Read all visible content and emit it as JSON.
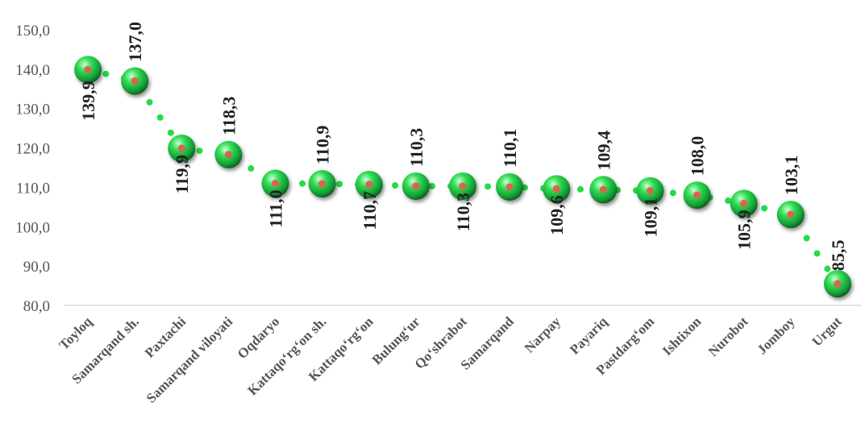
{
  "chart_data": {
    "type": "line",
    "title": "",
    "xlabel": "",
    "ylabel": "",
    "categories": [
      "Toyloq",
      "Samarqand sh.",
      "Paxtachi",
      "Samarqand viloyati",
      "Oqdaryo",
      "Kattaqo‘rg‘on sh.",
      "Kattaqo‘rg‘on",
      "Bulung‘ur",
      "Qo‘shrabot",
      "Samarqand",
      "Narpay",
      "Payariq",
      "Pastdarg‘om",
      "Ishtixon",
      "Nurobot",
      "Jomboy",
      "Urgut"
    ],
    "values": [
      139.9,
      137.0,
      119.9,
      118.3,
      111.0,
      110.9,
      110.7,
      110.3,
      110.3,
      110.1,
      109.6,
      109.4,
      109.1,
      108.0,
      105.9,
      103.1,
      85.5
    ],
    "value_labels": [
      "139,9",
      "137,0",
      "119,9",
      "118,3",
      "111,0",
      "110,9",
      "110,7",
      "110,3",
      "110,3",
      "110,1",
      "109,6",
      "109,4",
      "109,1",
      "108,0",
      "105,9",
      "103,1",
      "85,5"
    ],
    "ylim": [
      80,
      150
    ],
    "yticks": [
      80,
      90,
      100,
      110,
      120,
      130,
      140,
      150
    ],
    "ytick_labels": [
      "80,0",
      "90,0",
      "100,0",
      "110,0",
      "120,0",
      "130,0",
      "140,0",
      "150,0"
    ],
    "grid": false,
    "legend": "none",
    "colors": {
      "line": "#22dd44",
      "marker_light": "#b8ffc8",
      "marker_mid": "#22cc44",
      "marker_dark": "#0a6a22",
      "marker_center": "#e06050",
      "axis": "#d0d0d0",
      "tick_text": "#555555",
      "label_text": "#222222"
    }
  }
}
